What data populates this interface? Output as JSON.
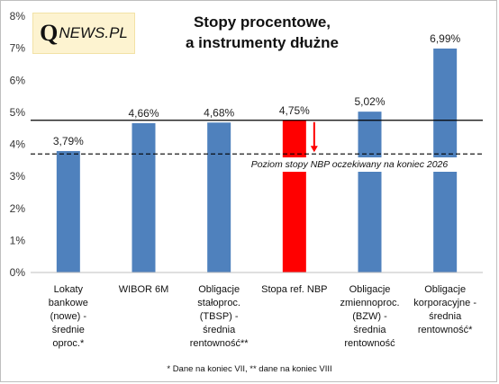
{
  "logo": {
    "q": "Q",
    "rest": "NEWS.PL"
  },
  "chart_data": {
    "type": "bar",
    "title": [
      "Stopy procentowe,",
      "a instrumenty dłużne"
    ],
    "categories": [
      [
        "Lokaty",
        "bankowe",
        "(nowe) -",
        "średnie",
        "oproc.*"
      ],
      [
        "WIBOR 6M"
      ],
      [
        "Obligacje",
        "stałoproc.",
        "(TBSP) -",
        "średnia",
        "rentowność**"
      ],
      [
        "Stopa ref. NBP"
      ],
      [
        "Obligacje",
        "zmiennoproc.",
        "(BZW) -",
        "średnia",
        "rentowność"
      ],
      [
        "Obligacje",
        "korporacyjne -",
        "średnia",
        "rentowność*"
      ]
    ],
    "values": [
      3.79,
      4.66,
      4.68,
      4.75,
      5.02,
      6.99
    ],
    "value_labels": [
      "3,79%",
      "4,66%",
      "4,68%",
      "4,75%",
      "5,02%",
      "6,99%"
    ],
    "bar_colors": [
      "#4f81bd",
      "#4f81bd",
      "#4f81bd",
      "#ff0000",
      "#4f81bd",
      "#4f81bd"
    ],
    "ylim": [
      0,
      8
    ],
    "yticks": [
      "0%",
      "1%",
      "2%",
      "3%",
      "4%",
      "5%",
      "6%",
      "7%",
      "8%"
    ],
    "reference_lines": [
      {
        "value": 4.75,
        "style": "solid",
        "color": "#000000"
      },
      {
        "value": 3.7,
        "style": "dashed",
        "color": "#000000"
      }
    ],
    "annotation": "Poziom stopy NBP oczekiwany na koniec 2026",
    "arrow_color": "#ff0000",
    "grid": false
  },
  "footnote": "* Dane na koniec VII, ** dane na koniec VIII"
}
